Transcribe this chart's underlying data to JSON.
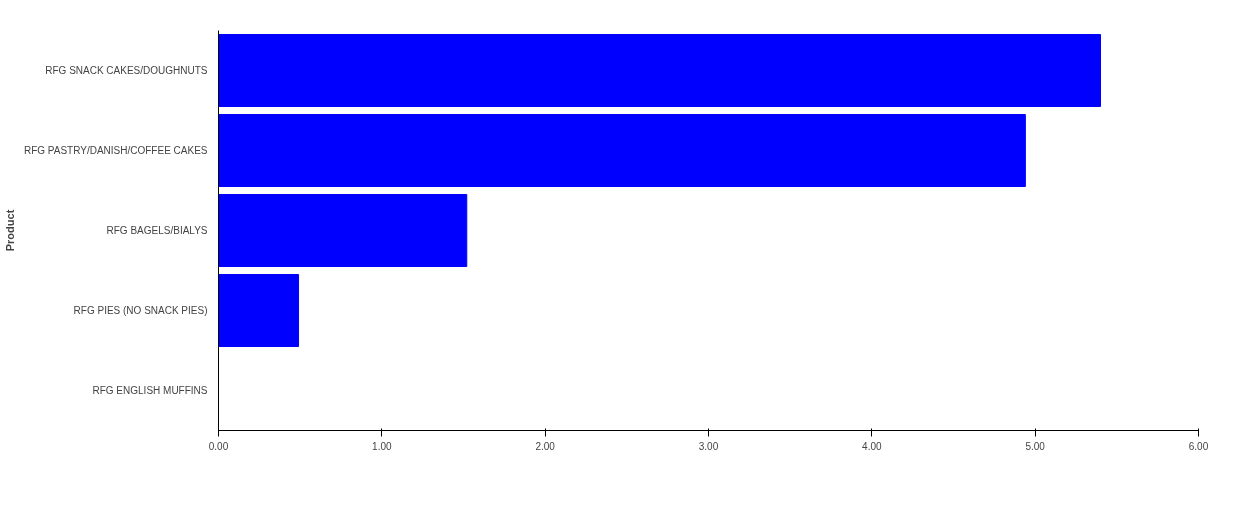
{
  "chart_data": {
    "type": "bar",
    "orientation": "horizontal",
    "ylabel": "Product",
    "categories": [
      "RFG SNACK CAKES/DOUGHNUTS",
      "RFG PASTRY/DANISH/COFFEE CAKES",
      "RFG BAGELS/BIALYS",
      "RFG PIES (NO SNACK PIES)",
      "RFG ENGLISH MUFFINS"
    ],
    "values": [
      5.4,
      4.94,
      1.52,
      0.49,
      0
    ],
    "color": "#0000ff",
    "xlim": [
      0,
      6
    ],
    "xticks": [
      {
        "value": 0,
        "label": "0.00"
      },
      {
        "value": 1,
        "label": "1.00"
      },
      {
        "value": 2,
        "label": "2.00"
      },
      {
        "value": 3,
        "label": "3.00"
      },
      {
        "value": 4,
        "label": "4.00"
      },
      {
        "value": 5,
        "label": "5.00"
      },
      {
        "value": 6,
        "label": "6.00"
      }
    ],
    "grid": false
  }
}
